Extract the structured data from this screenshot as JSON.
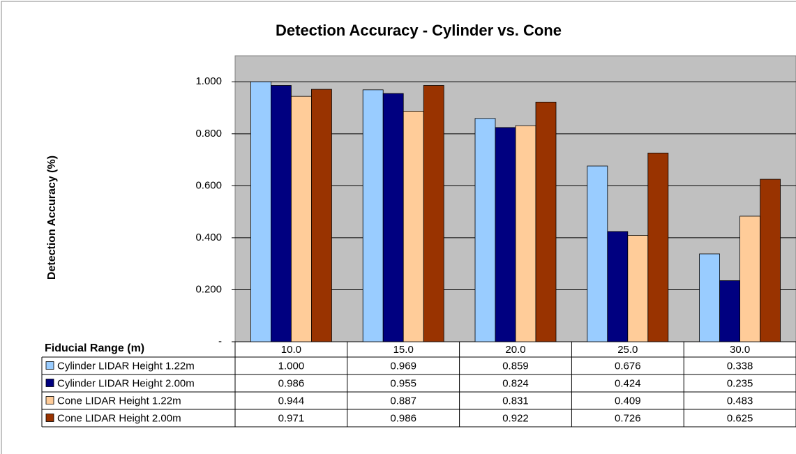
{
  "chart_data": {
    "type": "bar",
    "title": "Detection Accuracy - Cylinder vs. Cone",
    "x_label": "Fiducial Range (m)",
    "y_label": "Detection Accuracy (%)",
    "categories": [
      "10.0",
      "15.0",
      "20.0",
      "25.0",
      "30.0"
    ],
    "series": [
      {
        "name": "Cylinder LIDAR Height 1.22m",
        "color": "#99ccff",
        "values": [
          1.0,
          0.969,
          0.859,
          0.676,
          0.338
        ],
        "value_labels": [
          "1.000",
          "0.969",
          "0.859",
          "0.676",
          "0.338"
        ]
      },
      {
        "name": "Cylinder LIDAR Height 2.00m",
        "color": "#000080",
        "values": [
          0.986,
          0.955,
          0.824,
          0.424,
          0.235
        ],
        "value_labels": [
          "0.986",
          "0.955",
          "0.824",
          "0.424",
          "0.235"
        ]
      },
      {
        "name": "Cone LIDAR Height 1.22m",
        "color": "#ffcc99",
        "values": [
          0.944,
          0.887,
          0.831,
          0.409,
          0.483
        ],
        "value_labels": [
          "0.944",
          "0.887",
          "0.831",
          "0.409",
          "0.483"
        ]
      },
      {
        "name": "Cone LIDAR Height 2.00m",
        "color": "#993300",
        "values": [
          0.971,
          0.986,
          0.922,
          0.726,
          0.625
        ],
        "value_labels": [
          "0.971",
          "0.986",
          "0.922",
          "0.726",
          "0.625"
        ]
      }
    ],
    "ylim": [
      0,
      1.1
    ],
    "yticks": [
      {
        "value": 0,
        "label": "-"
      },
      {
        "value": 0.2,
        "label": "0.200"
      },
      {
        "value": 0.4,
        "label": "0.400"
      },
      {
        "value": 0.6,
        "label": "0.600"
      },
      {
        "value": 0.8,
        "label": "0.800"
      },
      {
        "value": 1.0,
        "label": "1.000"
      }
    ],
    "grid": true,
    "plot_background": "#c0c0c0"
  }
}
